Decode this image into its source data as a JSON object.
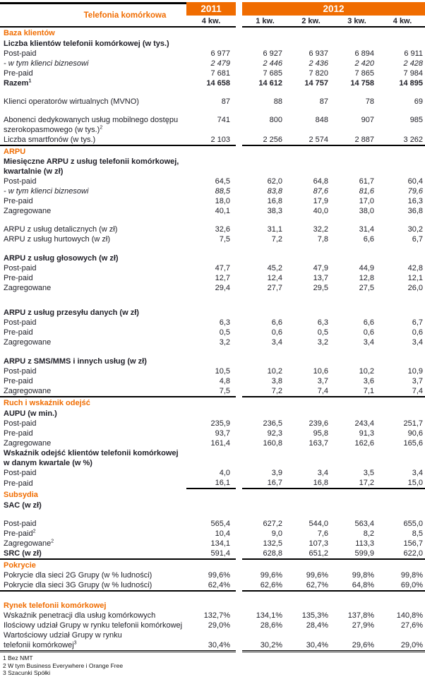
{
  "accent_color": "#f06c00",
  "header": {
    "title": "Telefonia komórkowa",
    "year_left": "2011",
    "year_right": "2012",
    "quarters": [
      "4 kw.",
      "1 kw.",
      "2 kw.",
      "3 kw.",
      "4 kw."
    ]
  },
  "rows": [
    {
      "type": "section",
      "label": "Baza klientów"
    },
    {
      "type": "group",
      "label": "Liczba klientów telefonii komórkowej (w tys.)"
    },
    {
      "type": "data",
      "label": "Post-paid",
      "values": [
        "6 977",
        "6 927",
        "6 937",
        "6 894",
        "6 911"
      ]
    },
    {
      "type": "data",
      "style": "italic",
      "label": "- w tym klienci biznesowi",
      "values": [
        "2 479",
        "2 446",
        "2 436",
        "2 420",
        "2 428"
      ]
    },
    {
      "type": "data",
      "label": "Pre-paid",
      "values": [
        "7 681",
        "7 685",
        "7 820",
        "7 865",
        "7 984"
      ]
    },
    {
      "type": "data",
      "style": "bold",
      "label": "Razem",
      "sup": "1",
      "values": [
        "14 658",
        "14 612",
        "14 757",
        "14 758",
        "14 895"
      ]
    },
    {
      "type": "spacer"
    },
    {
      "type": "data",
      "label": "Klienci operatorów wirtualnych (MVNO)",
      "values": [
        "87",
        "88",
        "87",
        "78",
        "69"
      ]
    },
    {
      "type": "spacer"
    },
    {
      "type": "data",
      "label": "Abonenci dedykowanych usług mobilnego dostępu\nszerokopasmowego (w tys.)",
      "sup": "2",
      "valign": "top",
      "values": [
        "741",
        "800",
        "848",
        "907",
        "985"
      ]
    },
    {
      "type": "data",
      "label": "Liczba smartfonów (w tys.)",
      "rule": "thick",
      "values": [
        "2 103",
        "2 256",
        "2 574",
        "2 887",
        "3 262"
      ]
    },
    {
      "type": "section",
      "label": "ARPU"
    },
    {
      "type": "group",
      "label": "Miesięczne ARPU z usług telefonii komórkowej,\nkwartalnie  (w zł)"
    },
    {
      "type": "data",
      "label": "Post-paid",
      "values": [
        "64,5",
        "62,0",
        "64,8",
        "61,7",
        "60,4"
      ]
    },
    {
      "type": "data",
      "style": "italic",
      "label": "- w tym klienci biznesowi",
      "values": [
        "88,5",
        "83,8",
        "87,6",
        "81,6",
        "79,6"
      ]
    },
    {
      "type": "data",
      "label": "Pre-paid",
      "values": [
        "18,0",
        "16,8",
        "17,9",
        "17,0",
        "16,3"
      ]
    },
    {
      "type": "data",
      "label": "Zagregowane",
      "values": [
        "40,1",
        "38,3",
        "40,0",
        "38,0",
        "36,8"
      ]
    },
    {
      "type": "spacer"
    },
    {
      "type": "data",
      "label": "ARPU z usług detalicznych (w zł)",
      "values": [
        "32,6",
        "31,1",
        "32,2",
        "31,4",
        "30,2"
      ]
    },
    {
      "type": "data",
      "label": "ARPU z usług hurtowych (w zł)",
      "values": [
        "7,5",
        "7,2",
        "7,8",
        "6,6",
        "6,7"
      ]
    },
    {
      "type": "spacer"
    },
    {
      "type": "group",
      "label": "ARPU z usług głosowych (w zł)"
    },
    {
      "type": "data",
      "label": "Post-paid",
      "values": [
        "47,7",
        "45,2",
        "47,9",
        "44,9",
        "42,8"
      ]
    },
    {
      "type": "data",
      "label": "Pre-paid",
      "values": [
        "12,7",
        "12,4",
        "13,7",
        "12,8",
        "12,1"
      ]
    },
    {
      "type": "data",
      "label": "Zagregowane",
      "values": [
        "29,4",
        "27,7",
        "29,5",
        "27,5",
        "26,0"
      ]
    },
    {
      "type": "spacer",
      "size": "tall"
    },
    {
      "type": "group",
      "label": "ARPU z usług przesyłu danych (w zł)"
    },
    {
      "type": "data",
      "label": "Post-paid",
      "values": [
        "6,3",
        "6,6",
        "6,3",
        "6,6",
        "6,7"
      ]
    },
    {
      "type": "data",
      "label": "Pre-paid",
      "values": [
        "0,5",
        "0,6",
        "0,5",
        "0,6",
        "0,6"
      ]
    },
    {
      "type": "data",
      "label": "Zagregowane",
      "values": [
        "3,2",
        "3,4",
        "3,2",
        "3,4",
        "3,4"
      ]
    },
    {
      "type": "spacer"
    },
    {
      "type": "group",
      "label": "ARPU z SMS/MMS i innych usług (w zł)"
    },
    {
      "type": "data",
      "label": "Post-paid",
      "values": [
        "10,5",
        "10,2",
        "10,6",
        "10,2",
        "10,9"
      ]
    },
    {
      "type": "data",
      "label": "Pre-paid",
      "values": [
        "4,8",
        "3,8",
        "3,7",
        "3,6",
        "3,7"
      ]
    },
    {
      "type": "data",
      "label": "Zagregowane",
      "rule": "thick",
      "values": [
        "7,5",
        "7,2",
        "7,4",
        "7,1",
        "7,4"
      ]
    },
    {
      "type": "section",
      "label": "Ruch i wskaźnik odejść"
    },
    {
      "type": "group",
      "label": "AUPU (w min.)"
    },
    {
      "type": "data",
      "label": "Post-paid",
      "values": [
        "235,9",
        "236,5",
        "239,6",
        "243,4",
        "251,7"
      ]
    },
    {
      "type": "data",
      "label": "Pre-paid",
      "values": [
        "93,7",
        "92,3",
        "95,8",
        "91,3",
        "90,6"
      ]
    },
    {
      "type": "data",
      "label": "Zagregowane",
      "values": [
        "161,4",
        "160,8",
        "163,7",
        "162,6",
        "165,6"
      ]
    },
    {
      "type": "group",
      "label": "Wskaźnik odejść klientów telefonii komórkowej\nw danym  kwartale (w %)"
    },
    {
      "type": "data",
      "label": "Post-paid",
      "values": [
        "4,0",
        "3,9",
        "3,4",
        "3,5",
        "3,4"
      ]
    },
    {
      "type": "data",
      "label": "Pre-paid",
      "rule": "thick",
      "ruleValuesOnly": true,
      "values": [
        "16,1",
        "16,7",
        "16,8",
        "17,2",
        "15,0"
      ]
    },
    {
      "type": "section",
      "label": "Subsydia"
    },
    {
      "type": "group",
      "label": "SAC (w zł)"
    },
    {
      "type": "spacer"
    },
    {
      "type": "data",
      "label": "Post-paid",
      "values": [
        "565,4",
        "627,2",
        "544,0",
        "563,4",
        "655,0"
      ]
    },
    {
      "type": "data",
      "label": "Pre-paid",
      "sup": "2",
      "values": [
        "10,4",
        "9,0",
        "7,6",
        "8,2",
        "8,5"
      ]
    },
    {
      "type": "data",
      "label": "Zagregowane",
      "sup": "2",
      "values": [
        "134,1",
        "132,5",
        "107,3",
        "113,3",
        "156,7"
      ]
    },
    {
      "type": "data",
      "labelStyle": "bold",
      "label": "SRC (w zł)",
      "rule": "thick",
      "values": [
        "591,4",
        "628,8",
        "651,2",
        "599,9",
        "622,0"
      ]
    },
    {
      "type": "section",
      "label": "Pokrycie"
    },
    {
      "type": "data",
      "label": "Pokrycie dla sieci 2G Grupy (w % ludności)",
      "values": [
        "99,6%",
        "99,6%",
        "99,6%",
        "99,8%",
        "99,8%"
      ]
    },
    {
      "type": "data",
      "label": "Pokrycie dla sieci 3G Grupy (w % ludności)",
      "rule": "thick",
      "values": [
        "62,4%",
        "62,6%",
        "62,7%",
        "64,8%",
        "69,0%"
      ]
    },
    {
      "type": "spacer"
    },
    {
      "type": "section",
      "label": "Rynek telefonii komórkowej"
    },
    {
      "type": "data",
      "label": "Wskaźnik penetracji dla usług komórkowych",
      "values": [
        "132,7%",
        "134,1%",
        "135,3%",
        "137,8%",
        "140,8%"
      ]
    },
    {
      "type": "data",
      "label": "Ilościowy udział Grupy w rynku telefonii komórkowej",
      "values": [
        "29,0%",
        "28,6%",
        "28,4%",
        "27,9%",
        "27,6%"
      ]
    },
    {
      "type": "data",
      "label": "Wartościowy udział Grupy w rynku\ntelefonii komórkowej",
      "sup": "3",
      "valign": "bottom",
      "rule": "double",
      "values": [
        "30,4%",
        "30,2%",
        "30,4%",
        "29,6%",
        "29,0%"
      ]
    }
  ],
  "footnotes": [
    "1 Bez NMT",
    "2 W tym Business Everywhere i Orange Free",
    "3 Szacunki Spółki"
  ]
}
